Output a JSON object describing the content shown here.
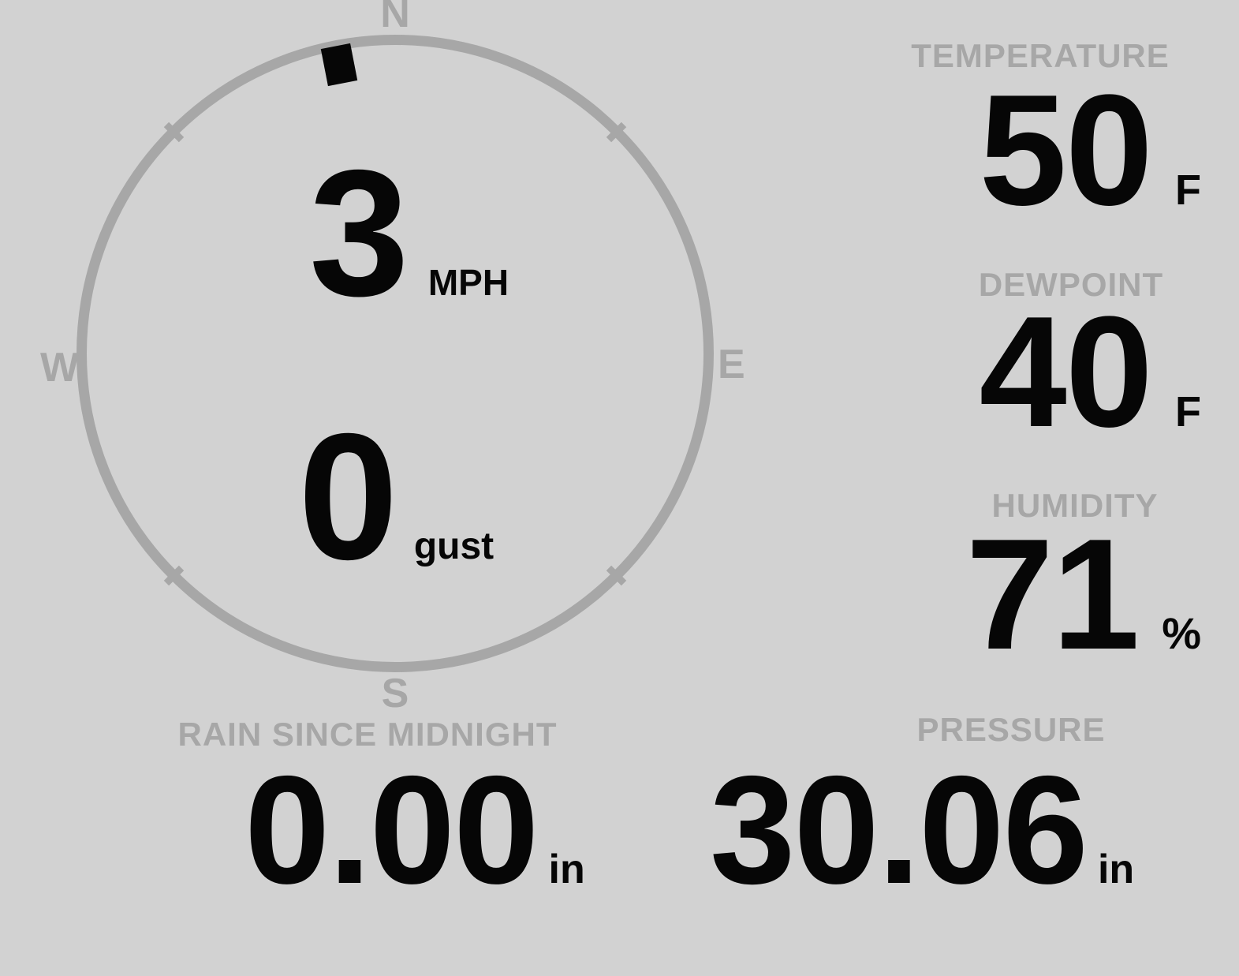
{
  "colors": {
    "background": "#d2d2d2",
    "muted_gray": "#a7a7a7",
    "ink": "#060606"
  },
  "compass": {
    "cardinals": {
      "north": "N",
      "east": "E",
      "south": "S",
      "west": "W"
    },
    "direction_deg": 349,
    "wind_speed": {
      "value": "3",
      "unit": "MPH"
    },
    "wind_gust": {
      "value": "0",
      "unit": "gust"
    }
  },
  "metrics": {
    "temperature": {
      "label": "TEMPERATURE",
      "value": "50",
      "unit": "F"
    },
    "dewpoint": {
      "label": "DEWPOINT",
      "value": "40",
      "unit": "F"
    },
    "humidity": {
      "label": "HUMIDITY",
      "value": "71",
      "unit": "%"
    },
    "rain": {
      "label": "RAIN SINCE MIDNIGHT",
      "value": "0.00",
      "unit": "in"
    },
    "pressure": {
      "label": "PRESSURE",
      "value": "30.06",
      "unit": "in"
    }
  }
}
